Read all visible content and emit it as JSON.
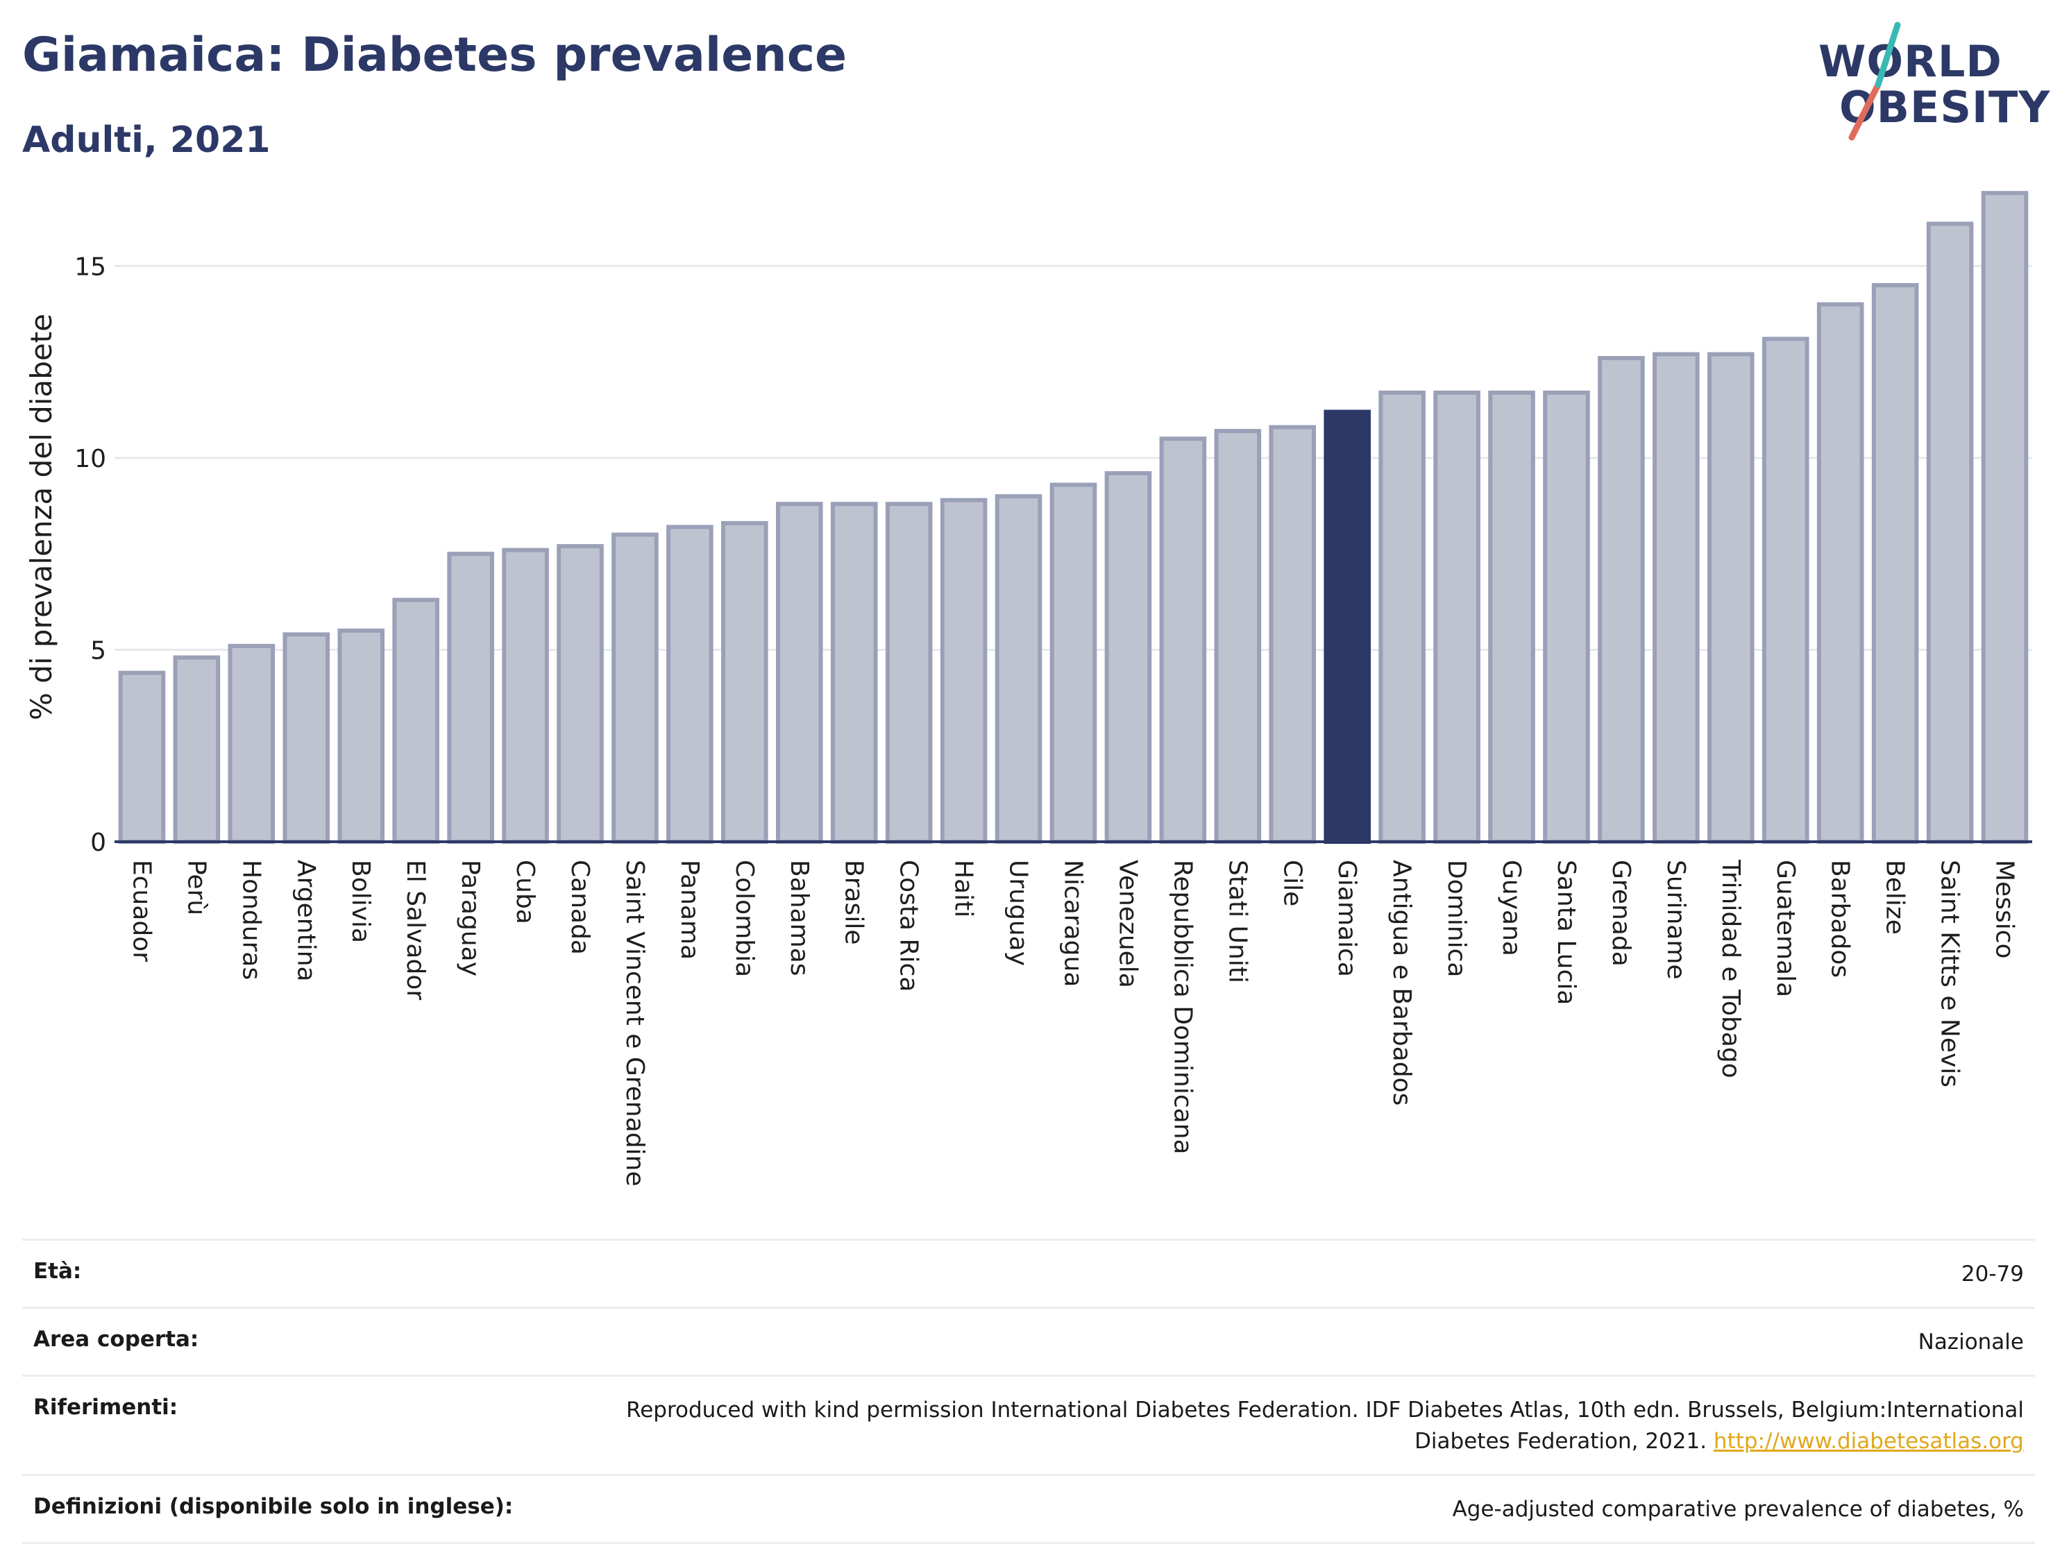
{
  "header": {
    "title": "Giamaica: Diabetes prevalence",
    "subtitle": "Adulti, 2021"
  },
  "logo": {
    "line1": "WORLD",
    "line2": "OBESITY",
    "colors": [
      "#2c3967",
      "#e06b5d",
      "#3bb8b4"
    ]
  },
  "colors": {
    "bar": "#bfc3d0",
    "bar_stroke": "#9aa0b7",
    "highlight": "#2c3967",
    "grid": "#e6e9ed",
    "axis": "#2c3967"
  },
  "chart_data": {
    "type": "bar",
    "ylabel": "% di prevalenza del diabete",
    "ylim": [
      0,
      17.5
    ],
    "yticks": [
      0,
      5,
      10,
      15
    ],
    "grid": true,
    "highlight": "Giamaica",
    "categories": [
      "Ecuador",
      "Perù",
      "Honduras",
      "Argentina",
      "Bolivia",
      "El Salvador",
      "Paraguay",
      "Cuba",
      "Canada",
      "Saint Vincent e Grenadine",
      "Panama",
      "Colombia",
      "Bahamas",
      "Brasile",
      "Costa Rica",
      "Haiti",
      "Uruguay",
      "Nicaragua",
      "Venezuela",
      "Repubblica Dominicana",
      "Stati Uniti",
      "Cile",
      "Giamaica",
      "Antigua e Barbados",
      "Dominica",
      "Guyana",
      "Santa Lucia",
      "Grenada",
      "Suriname",
      "Trinidad e Tobago",
      "Guatemala",
      "Barbados",
      "Belize",
      "Saint Kitts e Nevis",
      "Messico"
    ],
    "values": [
      4.4,
      4.8,
      5.1,
      5.4,
      5.5,
      6.3,
      7.5,
      7.6,
      7.7,
      8.0,
      8.2,
      8.3,
      8.8,
      8.8,
      8.8,
      8.9,
      9.0,
      9.3,
      9.6,
      10.5,
      10.7,
      10.8,
      11.2,
      11.7,
      11.7,
      11.7,
      11.7,
      12.6,
      12.7,
      12.7,
      13.1,
      14.0,
      14.5,
      16.1,
      16.9
    ]
  },
  "meta": {
    "rows": [
      {
        "label": "Età:",
        "value": "20-79"
      },
      {
        "label": "Area coperta:",
        "value": "Nazionale"
      },
      {
        "label": "Riferimenti:",
        "value": "Reproduced with kind permission International Diabetes Federation.  IDF Diabetes Atlas, 10th edn. Brussels, Belgium:International Diabetes Federation, 2021. ",
        "link": "http://www.diabetesatlas.org"
      },
      {
        "label": "Definizioni (disponibile solo in inglese):",
        "value": "Age-adjusted comparative prevalence of diabetes, %"
      }
    ]
  }
}
